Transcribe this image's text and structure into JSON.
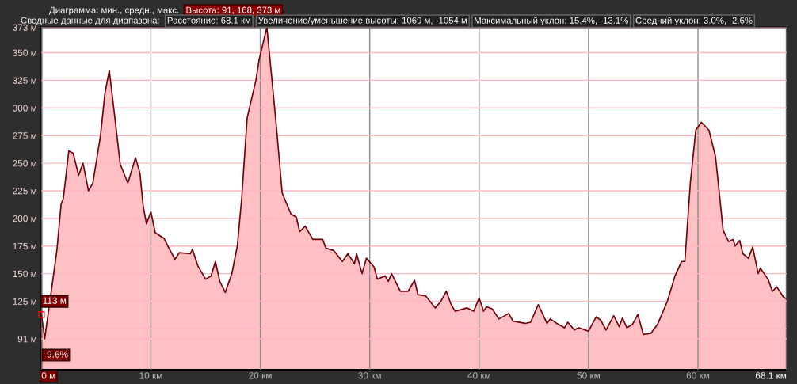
{
  "chart_data": {
    "type": "area",
    "annotations": [
      "Диаграмма: мин., средн., макс.",
      "Высота: 91, 168, 373 м",
      "Сводные данные для диапазона:",
      "Расстояние: 68.1 км",
      "Увеличение/уменьшение высоты: 1069 м, -1054 м",
      "Максимальный уклон: 15.4%, -13.1%",
      "Средний уклон: 3.0%, -2.6%",
      {
        "text": "113 м",
        "x": 0,
        "y": 113
      },
      "-9.6%"
    ],
    "x": [
      0,
      0.3,
      1.4,
      1.8,
      2.0,
      2.5,
      2.9,
      3.4,
      3.8,
      4.3,
      4.7,
      5.4,
      5.8,
      6.2,
      6.5,
      6.9,
      7.2,
      7.9,
      8.6,
      9.0,
      9.3,
      9.6,
      10.0,
      10.4,
      11.2,
      11.6,
      12.2,
      12.6,
      13.6,
      13.8,
      14.3,
      15.0,
      15.5,
      15.9,
      16.3,
      16.8,
      17.4,
      17.9,
      18.3,
      18.8,
      19.6,
      19.9,
      20.6,
      21.0,
      21.5,
      22.0,
      22.8,
      23.3,
      23.6,
      24.1,
      24.8,
      25.7,
      26.0,
      26.7,
      27.5,
      28.0,
      28.6,
      28.8,
      29.3,
      29.7,
      30.4,
      30.7,
      31.4,
      31.7,
      32.0,
      32.8,
      33.5,
      34.1,
      34.4,
      35.1,
      36.0,
      36.5,
      37.0,
      37.4,
      37.8,
      38.9,
      39.5,
      40.0,
      40.4,
      40.7,
      41.2,
      41.8,
      42.7,
      43.1,
      44.2,
      44.7,
      45.4,
      46.2,
      46.5,
      47.1,
      47.8,
      48.1,
      48.7,
      49.1,
      50.0,
      50.7,
      51.1,
      51.6,
      52.3,
      52.8,
      53.1,
      53.5,
      54.0,
      54.5,
      55.0,
      55.7,
      56.3,
      57.2,
      57.9,
      58.5,
      58.8,
      59.3,
      59.8,
      60.3,
      61.0,
      61.6,
      62.3,
      62.8,
      63.2,
      63.4,
      63.8,
      64.1,
      64.6,
      65.0,
      65.5,
      65.7,
      66.4,
      66.8,
      67.2,
      67.8,
      68.1
    ],
    "series": [
      {
        "color": "#ffc0c4",
        "values": [
          113,
          91,
          170,
          213,
          218,
          261,
          259,
          239,
          250,
          225,
          232,
          275,
          313,
          334,
          309,
          275,
          249,
          232,
          255,
          241,
          211,
          195,
          206,
          187,
          182,
          174,
          163,
          169,
          168,
          172,
          157,
          145,
          148,
          161,
          143,
          133,
          150,
          175,
          218,
          291,
          325,
          344,
          373,
          332,
          280,
          223,
          204,
          201,
          188,
          193,
          181,
          181,
          173,
          171,
          161,
          168,
          159,
          168,
          150,
          164,
          156,
          145,
          148,
          143,
          150,
          134,
          134,
          144,
          131,
          130,
          119,
          125,
          134,
          123,
          116,
          119,
          116,
          128,
          116,
          120,
          118,
          109,
          114,
          107,
          105,
          106,
          122,
          105,
          109,
          105,
          101,
          106,
          99,
          101,
          98,
          111,
          108,
          99,
          112,
          102,
          110,
          101,
          104,
          113,
          95,
          96,
          104,
          125,
          148,
          161,
          161,
          232,
          280,
          287,
          280,
          256,
          189,
          179,
          181,
          175,
          180,
          168,
          164,
          174,
          150,
          155,
          145,
          134,
          138,
          129,
          127
        ]
      }
    ],
    "xlim": [
      0,
      68.1
    ],
    "xticks": [
      {
        "value": 0,
        "label": "0 м"
      },
      {
        "value": 10,
        "label": "10 км"
      },
      {
        "value": 20,
        "label": "20 км"
      },
      {
        "value": 30,
        "label": "30 км"
      },
      {
        "value": 40,
        "label": "40 км"
      },
      {
        "value": 50,
        "label": "50 км"
      },
      {
        "value": 60,
        "label": "60 км"
      },
      {
        "value": 68.1,
        "label": "68.1 км"
      }
    ],
    "ylim": [
      63,
      373
    ],
    "yticks": [
      {
        "value": 91,
        "label": "91 м"
      },
      {
        "value": 100,
        "label": null
      },
      {
        "value": 125,
        "label": "125 м"
      },
      {
        "value": 150,
        "label": "150 м"
      },
      {
        "value": 175,
        "label": "175 м"
      },
      {
        "value": 200,
        "label": "200 м"
      },
      {
        "value": 225,
        "label": "225 м"
      },
      {
        "value": 250,
        "label": "250 м"
      },
      {
        "value": 275,
        "label": "275 м"
      },
      {
        "value": 300,
        "label": "300 м"
      },
      {
        "value": 325,
        "label": "325 м"
      },
      {
        "value": 350,
        "label": "350 м"
      },
      {
        "value": 373,
        "label": "373 м"
      }
    ],
    "grid": true
  }
}
